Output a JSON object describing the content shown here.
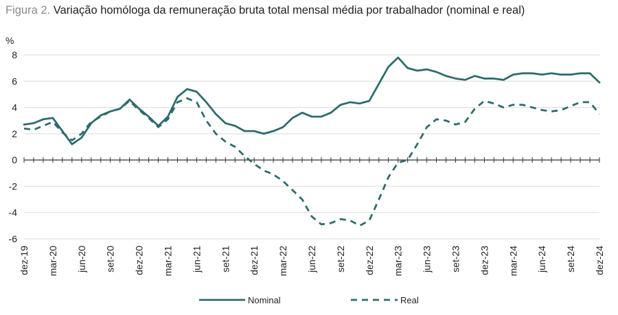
{
  "title": {
    "figure_label": "Figura 2.",
    "text": "Variação homóloga da remuneração bruta total mensal média por trabalhador (nominal e real)"
  },
  "chart_data": {
    "type": "line",
    "ylabel": "%",
    "ylim": [
      -6,
      8
    ],
    "yticks": [
      8,
      6,
      4,
      2,
      0,
      -2,
      -4,
      -6
    ],
    "grid": "horizontal",
    "legend_position": "bottom",
    "x_labels": [
      "dez-19",
      "mar-20",
      "jun-20",
      "set-20",
      "dez-20",
      "mar-21",
      "jun-21",
      "set-21",
      "dez-21",
      "mar-22",
      "jun-22",
      "set-22",
      "dez-22",
      "mar-23",
      "jun-23",
      "set-23",
      "dez-23",
      "mar-24",
      "jun-24",
      "set-24",
      "dez-24"
    ],
    "months": [
      "dez-19",
      "jan-20",
      "fev-20",
      "mar-20",
      "abr-20",
      "mai-20",
      "jun-20",
      "jul-20",
      "ago-20",
      "set-20",
      "out-20",
      "nov-20",
      "dez-20",
      "jan-21",
      "fev-21",
      "mar-21",
      "abr-21",
      "mai-21",
      "jun-21",
      "jul-21",
      "ago-21",
      "set-21",
      "out-21",
      "nov-21",
      "dez-21",
      "jan-22",
      "fev-22",
      "mar-22",
      "abr-22",
      "mai-22",
      "jun-22",
      "jul-22",
      "ago-22",
      "set-22",
      "out-22",
      "nov-22",
      "dez-22",
      "jan-23",
      "fev-23",
      "mar-23",
      "abr-23",
      "mai-23",
      "jun-23",
      "jul-23",
      "ago-23",
      "set-23",
      "out-23",
      "nov-23",
      "dez-23",
      "jan-24",
      "fev-24",
      "mar-24",
      "abr-24",
      "mai-24",
      "jun-24",
      "jul-24",
      "ago-24",
      "set-24",
      "out-24",
      "nov-24",
      "dez-24"
    ],
    "series": [
      {
        "name": "Nominal",
        "style": "solid",
        "color": "#2e6b6b",
        "values": [
          2.7,
          2.8,
          3.1,
          3.2,
          2.2,
          1.2,
          1.7,
          2.8,
          3.4,
          3.7,
          3.9,
          4.6,
          3.9,
          3.3,
          2.6,
          3.3,
          4.8,
          5.4,
          5.2,
          4.4,
          3.5,
          2.8,
          2.6,
          2.2,
          2.2,
          2.0,
          2.2,
          2.5,
          3.2,
          3.6,
          3.3,
          3.3,
          3.6,
          4.2,
          4.4,
          4.3,
          4.5,
          5.8,
          7.1,
          7.8,
          7.0,
          6.8,
          6.9,
          6.7,
          6.4,
          6.2,
          6.1,
          6.4,
          6.2,
          6.2,
          6.1,
          6.5,
          6.6,
          6.6,
          6.5,
          6.6,
          6.5,
          6.5,
          6.6,
          6.6,
          5.9
        ]
      },
      {
        "name": "Real",
        "style": "dashed",
        "color": "#2e6b6b",
        "values": [
          2.4,
          2.3,
          2.6,
          2.9,
          2.1,
          1.5,
          2.0,
          2.9,
          3.3,
          3.7,
          3.9,
          4.5,
          3.8,
          3.2,
          2.5,
          3.1,
          4.4,
          4.7,
          4.4,
          3.0,
          2.0,
          1.4,
          1.0,
          0.3,
          -0.3,
          -0.8,
          -1.1,
          -1.6,
          -2.3,
          -3.0,
          -4.3,
          -4.9,
          -4.8,
          -4.5,
          -4.6,
          -5.0,
          -4.6,
          -3.0,
          -1.3,
          -0.2,
          0.0,
          1.2,
          2.5,
          3.1,
          3.0,
          2.7,
          2.9,
          3.9,
          4.5,
          4.3,
          4.0,
          4.2,
          4.2,
          4.0,
          3.8,
          3.7,
          3.8,
          4.1,
          4.4,
          4.4,
          3.5
        ]
      }
    ]
  }
}
